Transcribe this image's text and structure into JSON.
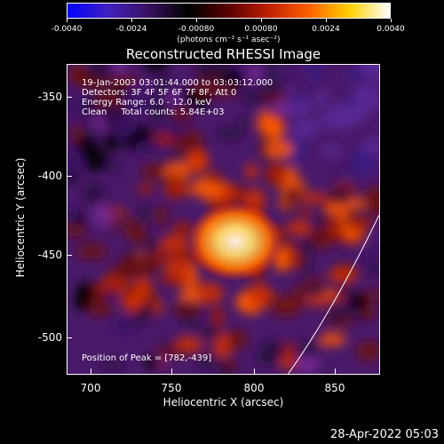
{
  "colorbar": {
    "ticks": [
      "-0.0040",
      "-0.0024",
      "-0.00080",
      "0.00080",
      "0.0024",
      "0.0040"
    ],
    "units": "(photons cm⁻² s⁻¹ asec⁻²)",
    "colors": [
      "#0000ff",
      "#4020c0",
      "#3a1060",
      "#000000",
      "#5a0000",
      "#c02000",
      "#ff6000",
      "#ffd000",
      "#ffffff"
    ]
  },
  "title": "Reconstructed RHESSI Image",
  "overlay": {
    "time": "19-Jan-2003 03:01:44.000 to 03:03:12.000",
    "detectors": "Detectors: 3F 4F 5F 6F 7F 8F, Att 0",
    "energy": "Energy Range: 6.0 - 12.0 keV",
    "clean": "Clean     Total counts: 5.84E+03",
    "peak": "Position of Peak = [782,-439]"
  },
  "axes": {
    "xlabel": "Heliocentric X (arcsec)",
    "ylabel": "Heliocentric Y (arcsec)",
    "xticks": [
      "700",
      "750",
      "800",
      "850"
    ],
    "yticks": [
      "-350",
      "-400",
      "-450",
      "-500"
    ],
    "xlim": [
      687,
      877
    ],
    "ylim": [
      -525,
      -333
    ]
  },
  "footer": {
    "date": "28-Apr-2022 05:03"
  }
}
